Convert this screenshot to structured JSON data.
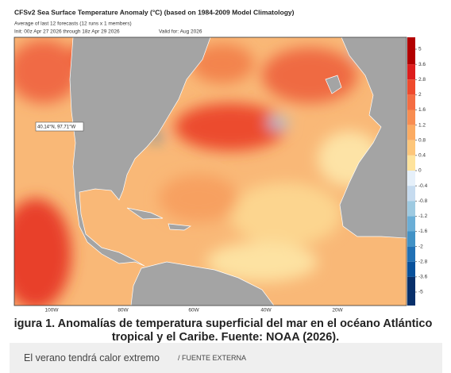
{
  "header": {
    "title": "CFSv2 Sea Surface Temperature Anomaly (°C) (based on 1984-2009 Model Climatology)",
    "subtitle": "Average of last 12 forecasts (12 runs x 1 members)",
    "init": "Init: 00z Apr 27 2026 through 18z Apr 29 2026",
    "valid": "Valid for: Aug 2026"
  },
  "map": {
    "pin_label": "40.14°N, 97.71°W",
    "lon_labels": [
      "100W",
      "80W",
      "60W",
      "40W",
      "20W"
    ]
  },
  "legend": {
    "ticks": [
      5,
      3.6,
      2.8,
      2,
      1.6,
      1.2,
      0.8,
      0.4,
      0,
      -0.4,
      -0.8,
      -1.2,
      -1.6,
      -2,
      -2.8,
      -3.6,
      -5
    ],
    "colors": [
      "#b30000",
      "#dd1c1c",
      "#ef4a2d",
      "#f46d43",
      "#f88d51",
      "#fbab62",
      "#fdc67a",
      "#fee39c",
      "#e6f0fa",
      "#c6dbef",
      "#9ecae1",
      "#6baed6",
      "#4292c6",
      "#2171b5",
      "#08519c",
      "#08306b"
    ]
  },
  "caption": [
    "igura 1. Anomalías de temperatura superficial del mar en el océano Atlántico",
    "tropical y el Caribe. Fuente: NOAA (2026)."
  ],
  "footer": {
    "text": "El verano tendrá calor extremo",
    "source": "/ FUENTE EXTERNA"
  }
}
